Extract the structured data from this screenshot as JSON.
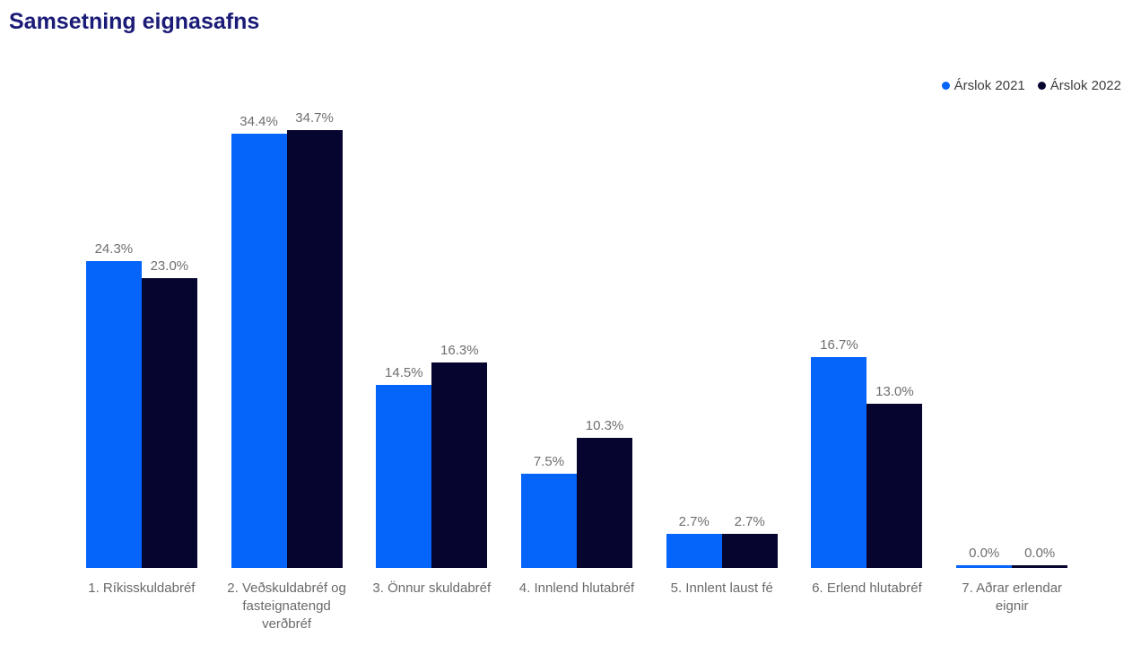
{
  "title": "Samsetning eignasafns",
  "colors": {
    "title": "#1b1b78",
    "label_gray": "#6f6f6f",
    "series_2021": "#0564FA",
    "series_2022": "#06052F"
  },
  "chart_data": {
    "type": "bar",
    "title": "Samsetning eignasafns",
    "xlabel": "",
    "ylabel": "",
    "ylim": [
      0,
      35
    ],
    "grid": false,
    "legend_position": "top-right",
    "value_format": "percent-one-decimal",
    "categories": [
      "1. Ríkisskuldabréf",
      "2. Veðskuldabréf og fasteignatengd verðbréf",
      "3. Önnur skuldabréf",
      "4. Innlend hlutabréf",
      "5. Innlent laust fé",
      "6. Erlend hlutabréf",
      "7. Aðrar erlendar eignir"
    ],
    "series": [
      {
        "name": "Árslok 2021",
        "color": "#0564FA",
        "values": [
          24.3,
          34.4,
          14.5,
          7.5,
          2.7,
          16.7,
          0.0
        ],
        "labels": [
          "24.3%",
          "34.4%",
          "14.5%",
          "7.5%",
          "2.7%",
          "16.7%",
          "0.0%"
        ]
      },
      {
        "name": "Árslok 2022",
        "color": "#06052F",
        "values": [
          23.0,
          34.7,
          16.3,
          10.3,
          2.7,
          13.0,
          0.0
        ],
        "labels": [
          "23.0%",
          "34.7%",
          "16.3%",
          "10.3%",
          "2.7%",
          "13.0%",
          "0.0%"
        ]
      }
    ]
  }
}
